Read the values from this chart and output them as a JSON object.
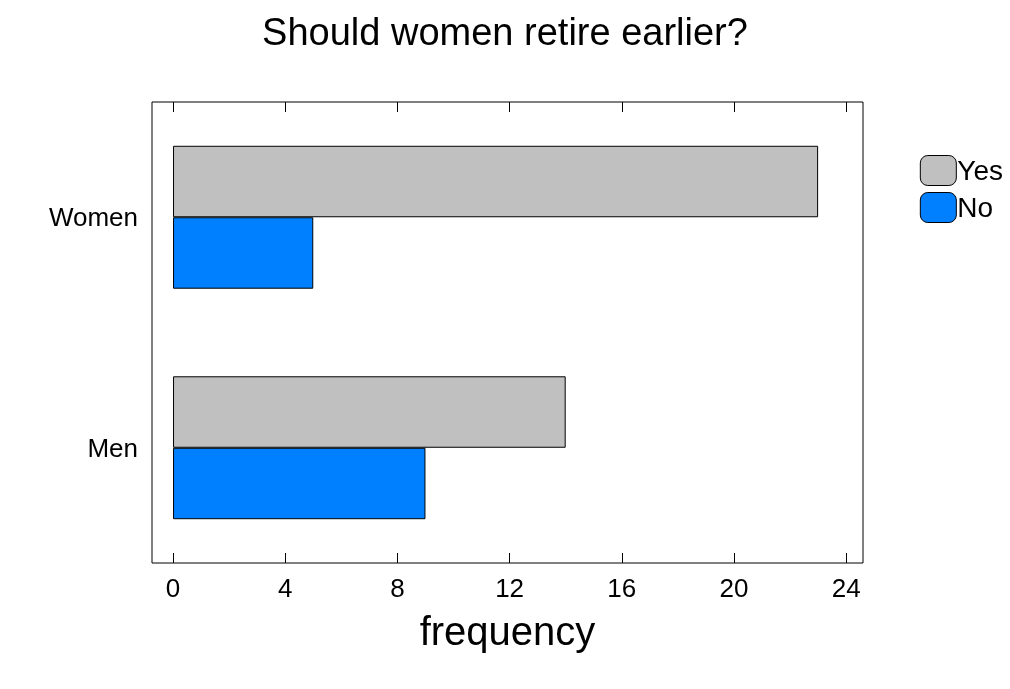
{
  "chart_data": {
    "type": "bar",
    "title": "Should women retire earlier?",
    "xlabel": "frequency",
    "orientation": "horizontal",
    "categories": [
      "Women",
      "Men"
    ],
    "series": [
      {
        "name": "Yes",
        "color": "#c0c0c0",
        "values": [
          23,
          14
        ]
      },
      {
        "name": "No",
        "color": "#0080ff",
        "values": [
          5,
          9
        ]
      }
    ],
    "xlim": [
      -0.75,
      24.6
    ],
    "xticks": [
      0,
      4,
      8,
      12,
      16,
      20,
      24
    ],
    "grid": false,
    "legend": "top right"
  }
}
